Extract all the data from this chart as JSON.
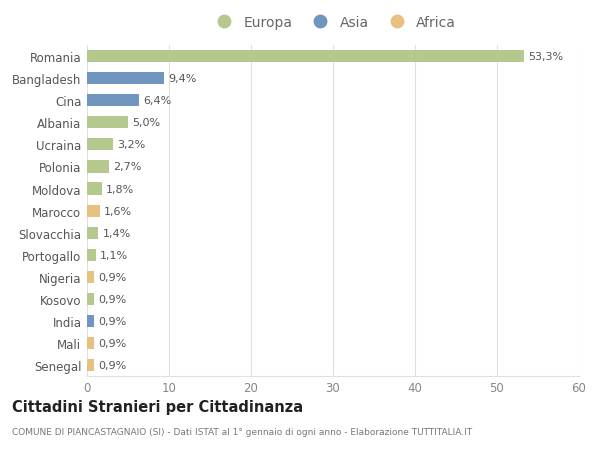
{
  "countries": [
    "Romania",
    "Bangladesh",
    "Cina",
    "Albania",
    "Ucraina",
    "Polonia",
    "Moldova",
    "Marocco",
    "Slovacchia",
    "Portogallo",
    "Nigeria",
    "Kosovo",
    "India",
    "Mali",
    "Senegal"
  ],
  "values": [
    53.3,
    9.4,
    6.4,
    5.0,
    3.2,
    2.7,
    1.8,
    1.6,
    1.4,
    1.1,
    0.9,
    0.9,
    0.9,
    0.9,
    0.9
  ],
  "labels": [
    "53,3%",
    "9,4%",
    "6,4%",
    "5,0%",
    "3,2%",
    "2,7%",
    "1,8%",
    "1,6%",
    "1,4%",
    "1,1%",
    "0,9%",
    "0,9%",
    "0,9%",
    "0,9%",
    "0,9%"
  ],
  "continents": [
    "Europa",
    "Asia",
    "Asia",
    "Europa",
    "Europa",
    "Europa",
    "Europa",
    "Africa",
    "Europa",
    "Europa",
    "Africa",
    "Europa",
    "Asia",
    "Africa",
    "Africa"
  ],
  "colors": {
    "Europa": "#b5c98e",
    "Asia": "#7096bf",
    "Africa": "#e8c080"
  },
  "xlim": [
    0,
    60
  ],
  "xticks": [
    0,
    10,
    20,
    30,
    40,
    50,
    60
  ],
  "title": "Cittadini Stranieri per Cittadinanza",
  "subtitle": "COMUNE DI PIANCASTAGNAIO (SI) - Dati ISTAT al 1° gennaio di ogni anno - Elaborazione TUTTITALIA.IT",
  "background_color": "#ffffff",
  "grid_color": "#e0e0e0"
}
